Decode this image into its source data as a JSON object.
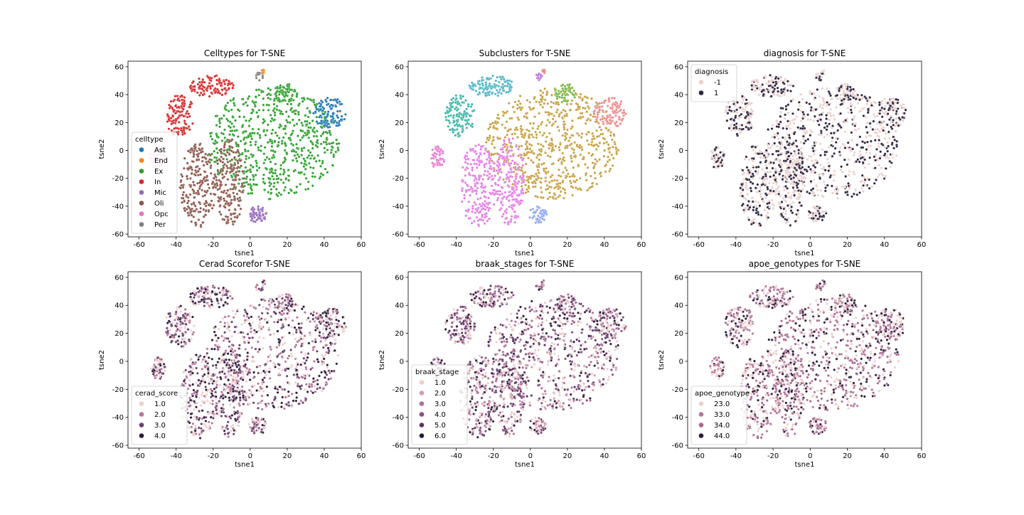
{
  "chart_data": [
    {
      "type": "scatter",
      "title": "Celltypes for T-SNE",
      "xlabel": "tsne1",
      "ylabel": "tsne2",
      "xlim": [
        -66,
        60
      ],
      "ylim": [
        -62,
        64
      ],
      "xticks": [
        -60,
        -40,
        -20,
        0,
        20,
        40,
        60
      ],
      "yticks": [
        -60,
        -40,
        -20,
        0,
        20,
        40,
        60
      ],
      "legend": {
        "title": "celltype",
        "placement": "lower-left",
        "entries": [
          {
            "label": "Ast",
            "color": "#1f77b4"
          },
          {
            "label": "End",
            "color": "#ff7f0e"
          },
          {
            "label": "Ex",
            "color": "#2ca02c"
          },
          {
            "label": "In",
            "color": "#d62728"
          },
          {
            "label": "Mic",
            "color": "#9467bd"
          },
          {
            "label": "Oli",
            "color": "#8c564b"
          },
          {
            "label": "Opc",
            "color": "#e377c2"
          },
          {
            "label": "Per",
            "color": "#7f7f7f"
          }
        ]
      },
      "clusters": [
        {
          "label": "Ex",
          "cx": 12,
          "cy": 5,
          "rx": 36,
          "ry": 40,
          "n": 650
        },
        {
          "label": "Oli",
          "cx": -28,
          "cy": -25,
          "rx": 10,
          "ry": 30,
          "n": 220
        },
        {
          "label": "Oli",
          "cx": -11,
          "cy": -22,
          "rx": 8,
          "ry": 32,
          "n": 190
        },
        {
          "label": "In",
          "cx": -21,
          "cy": 46,
          "rx": 12,
          "ry": 8,
          "n": 110
        },
        {
          "label": "In",
          "cx": -38,
          "cy": 25,
          "rx": 8,
          "ry": 15,
          "n": 120
        },
        {
          "label": "Ast",
          "cx": 43,
          "cy": 27,
          "rx": 9,
          "ry": 11,
          "n": 100
        },
        {
          "label": "Ex",
          "cx": 19,
          "cy": 41,
          "rx": 6,
          "ry": 7,
          "n": 50
        },
        {
          "label": "Mic",
          "cx": 4,
          "cy": -46,
          "rx": 5,
          "ry": 6,
          "n": 50
        },
        {
          "label": "Opc",
          "cx": -50,
          "cy": -5,
          "rx": 4,
          "ry": 8,
          "n": 50
        },
        {
          "label": "Per",
          "cx": 5,
          "cy": 53,
          "rx": 2,
          "ry": 3,
          "n": 14
        },
        {
          "label": "End",
          "cx": 7,
          "cy": 56,
          "rx": 1,
          "ry": 2,
          "n": 8
        }
      ]
    },
    {
      "type": "scatter",
      "title": "Subclusters for T-SNE",
      "xlabel": "tsne1",
      "ylabel": "tsne2",
      "xlim": [
        -66,
        60
      ],
      "ylim": [
        -62,
        64
      ],
      "xticks": [
        -60,
        -40,
        -20,
        0,
        20,
        40,
        60
      ],
      "yticks": [
        -60,
        -40,
        -20,
        0,
        20,
        40,
        60
      ],
      "legend": null,
      "clusters": [
        {
          "color": "#c8a040",
          "cx": 12,
          "cy": 5,
          "rx": 36,
          "ry": 40,
          "n": 650
        },
        {
          "color": "#e57de6",
          "cx": -28,
          "cy": -25,
          "rx": 10,
          "ry": 30,
          "n": 220
        },
        {
          "color": "#e57de6",
          "cx": -11,
          "cy": -22,
          "rx": 8,
          "ry": 32,
          "n": 190
        },
        {
          "color": "#4fb5c8",
          "cx": -21,
          "cy": 46,
          "rx": 12,
          "ry": 8,
          "n": 110
        },
        {
          "color": "#3fb5a8",
          "cx": -38,
          "cy": 25,
          "rx": 8,
          "ry": 15,
          "n": 120
        },
        {
          "color": "#f08a8a",
          "cx": 43,
          "cy": 27,
          "rx": 9,
          "ry": 11,
          "n": 100
        },
        {
          "color": "#77b840",
          "cx": 19,
          "cy": 41,
          "rx": 6,
          "ry": 7,
          "n": 50
        },
        {
          "color": "#8ea8f0",
          "cx": 4,
          "cy": -46,
          "rx": 5,
          "ry": 6,
          "n": 50
        },
        {
          "color": "#e87ad0",
          "cx": -50,
          "cy": -5,
          "rx": 4,
          "ry": 8,
          "n": 50
        },
        {
          "color": "#c07ae0",
          "cx": 5,
          "cy": 53,
          "rx": 2,
          "ry": 3,
          "n": 14
        },
        {
          "color": "#f57070",
          "cx": 7,
          "cy": 56,
          "rx": 1,
          "ry": 2,
          "n": 8
        }
      ]
    },
    {
      "type": "scatter",
      "title": "diagnosis for T-SNE",
      "xlabel": "tsne1",
      "ylabel": "tsne2",
      "xlim": [
        -66,
        60
      ],
      "ylim": [
        -62,
        64
      ],
      "xticks": [
        -60,
        -40,
        -20,
        0,
        20,
        40,
        60
      ],
      "yticks": [
        -60,
        -40,
        -20,
        0,
        20,
        40,
        60
      ],
      "legend": {
        "title": "diagnosis",
        "placement": "upper-left",
        "entries": [
          {
            "label": "-1",
            "color": "#eccfcb"
          },
          {
            "label": "1",
            "color": "#2e2540"
          }
        ]
      },
      "clusters": [
        {
          "cx": 12,
          "cy": 5,
          "rx": 36,
          "ry": 40,
          "n": 650
        },
        {
          "cx": -28,
          "cy": -25,
          "rx": 10,
          "ry": 30,
          "n": 220
        },
        {
          "cx": -11,
          "cy": -22,
          "rx": 8,
          "ry": 32,
          "n": 190
        },
        {
          "cx": -21,
          "cy": 46,
          "rx": 12,
          "ry": 8,
          "n": 110
        },
        {
          "cx": -38,
          "cy": 25,
          "rx": 8,
          "ry": 15,
          "n": 120
        },
        {
          "cx": 43,
          "cy": 27,
          "rx": 9,
          "ry": 11,
          "n": 100
        },
        {
          "cx": 19,
          "cy": 41,
          "rx": 6,
          "ry": 7,
          "n": 50
        },
        {
          "cx": 4,
          "cy": -46,
          "rx": 5,
          "ry": 6,
          "n": 50
        },
        {
          "cx": -50,
          "cy": -5,
          "rx": 4,
          "ry": 8,
          "n": 50
        },
        {
          "cx": 5,
          "cy": 53,
          "rx": 2,
          "ry": 3,
          "n": 14
        },
        {
          "cx": 7,
          "cy": 56,
          "rx": 1,
          "ry": 2,
          "n": 8
        }
      ]
    },
    {
      "type": "scatter",
      "title": "Cerad Scorefor T-SNE",
      "xlabel": "tsne1",
      "ylabel": "tsne2",
      "xlim": [
        -66,
        60
      ],
      "ylim": [
        -62,
        64
      ],
      "xticks": [
        -60,
        -40,
        -20,
        0,
        20,
        40,
        60
      ],
      "yticks": [
        -60,
        -40,
        -20,
        0,
        20,
        40,
        60
      ],
      "legend": {
        "title": "cerad_score",
        "placement": "lower-left",
        "entries": [
          {
            "label": "1.0",
            "color": "#eccfcb"
          },
          {
            "label": "2.0",
            "color": "#b77899"
          },
          {
            "label": "3.0",
            "color": "#6e3f6e"
          },
          {
            "label": "4.0",
            "color": "#2a1c38"
          }
        ]
      },
      "clusters": [
        {
          "cx": 12,
          "cy": 5,
          "rx": 36,
          "ry": 40,
          "n": 650
        },
        {
          "cx": -28,
          "cy": -25,
          "rx": 10,
          "ry": 30,
          "n": 220
        },
        {
          "cx": -11,
          "cy": -22,
          "rx": 8,
          "ry": 32,
          "n": 190
        },
        {
          "cx": -21,
          "cy": 46,
          "rx": 12,
          "ry": 8,
          "n": 110
        },
        {
          "cx": -38,
          "cy": 25,
          "rx": 8,
          "ry": 15,
          "n": 120
        },
        {
          "cx": 43,
          "cy": 27,
          "rx": 9,
          "ry": 11,
          "n": 100
        },
        {
          "cx": 19,
          "cy": 41,
          "rx": 6,
          "ry": 7,
          "n": 50
        },
        {
          "cx": 4,
          "cy": -46,
          "rx": 5,
          "ry": 6,
          "n": 50
        },
        {
          "cx": -50,
          "cy": -5,
          "rx": 4,
          "ry": 8,
          "n": 50
        },
        {
          "cx": 5,
          "cy": 53,
          "rx": 2,
          "ry": 3,
          "n": 14
        },
        {
          "cx": 7,
          "cy": 56,
          "rx": 1,
          "ry": 2,
          "n": 8
        }
      ]
    },
    {
      "type": "scatter",
      "title": "braak_stages for T-SNE",
      "xlabel": "tsne1",
      "ylabel": "tsne2",
      "xlim": [
        -66,
        60
      ],
      "ylim": [
        -62,
        64
      ],
      "xticks": [
        -60,
        -40,
        -20,
        0,
        20,
        40,
        60
      ],
      "yticks": [
        -60,
        -40,
        -20,
        0,
        20,
        40,
        60
      ],
      "legend": {
        "title": "braak_stage",
        "placement": "lower-left",
        "entries": [
          {
            "label": "1.0",
            "color": "#eccfcb"
          },
          {
            "label": "2.0",
            "color": "#d19fac"
          },
          {
            "label": "3.0",
            "color": "#b17095"
          },
          {
            "label": "4.0",
            "color": "#8b4f82"
          },
          {
            "label": "5.0",
            "color": "#5e3566"
          },
          {
            "label": "6.0",
            "color": "#2a1c38"
          }
        ]
      },
      "clusters": [
        {
          "cx": 12,
          "cy": 5,
          "rx": 36,
          "ry": 40,
          "n": 650
        },
        {
          "cx": -28,
          "cy": -25,
          "rx": 10,
          "ry": 30,
          "n": 220
        },
        {
          "cx": -11,
          "cy": -22,
          "rx": 8,
          "ry": 32,
          "n": 190
        },
        {
          "cx": -21,
          "cy": 46,
          "rx": 12,
          "ry": 8,
          "n": 110
        },
        {
          "cx": -38,
          "cy": 25,
          "rx": 8,
          "ry": 15,
          "n": 120
        },
        {
          "cx": 43,
          "cy": 27,
          "rx": 9,
          "ry": 11,
          "n": 100
        },
        {
          "cx": 19,
          "cy": 41,
          "rx": 6,
          "ry": 7,
          "n": 50
        },
        {
          "cx": 4,
          "cy": -46,
          "rx": 5,
          "ry": 6,
          "n": 50
        },
        {
          "cx": -50,
          "cy": -5,
          "rx": 4,
          "ry": 8,
          "n": 50
        },
        {
          "cx": 5,
          "cy": 53,
          "rx": 2,
          "ry": 3,
          "n": 14
        },
        {
          "cx": 7,
          "cy": 56,
          "rx": 1,
          "ry": 2,
          "n": 8
        }
      ]
    },
    {
      "type": "scatter",
      "title": "apoe_genotypes for T-SNE",
      "xlabel": "tsne1",
      "ylabel": "tsne2",
      "xlim": [
        -66,
        60
      ],
      "ylim": [
        -62,
        64
      ],
      "xticks": [
        -60,
        -40,
        -20,
        0,
        20,
        40,
        60
      ],
      "yticks": [
        -60,
        -40,
        -20,
        0,
        20,
        40,
        60
      ],
      "legend": {
        "title": "apoe_genotype",
        "placement": "lower-left",
        "entries": [
          {
            "label": "23.0",
            "color": "#eccfcb"
          },
          {
            "label": "33.0",
            "color": "#b77899"
          },
          {
            "label": "34.0",
            "color": "#a7698f"
          },
          {
            "label": "44.0",
            "color": "#2a1c38"
          }
        ]
      },
      "clusters": [
        {
          "cx": 12,
          "cy": 5,
          "rx": 36,
          "ry": 40,
          "n": 650
        },
        {
          "cx": -28,
          "cy": -25,
          "rx": 10,
          "ry": 30,
          "n": 220
        },
        {
          "cx": -11,
          "cy": -22,
          "rx": 8,
          "ry": 32,
          "n": 190
        },
        {
          "cx": -21,
          "cy": 46,
          "rx": 12,
          "ry": 8,
          "n": 110
        },
        {
          "cx": -38,
          "cy": 25,
          "rx": 8,
          "ry": 15,
          "n": 120
        },
        {
          "cx": 43,
          "cy": 27,
          "rx": 9,
          "ry": 11,
          "n": 100
        },
        {
          "cx": 19,
          "cy": 41,
          "rx": 6,
          "ry": 7,
          "n": 50
        },
        {
          "cx": 4,
          "cy": -46,
          "rx": 5,
          "ry": 6,
          "n": 50
        },
        {
          "cx": -50,
          "cy": -5,
          "rx": 4,
          "ry": 8,
          "n": 50
        },
        {
          "cx": 5,
          "cy": 53,
          "rx": 2,
          "ry": 3,
          "n": 14
        },
        {
          "cx": 7,
          "cy": 56,
          "rx": 1,
          "ry": 2,
          "n": 8
        }
      ]
    }
  ]
}
